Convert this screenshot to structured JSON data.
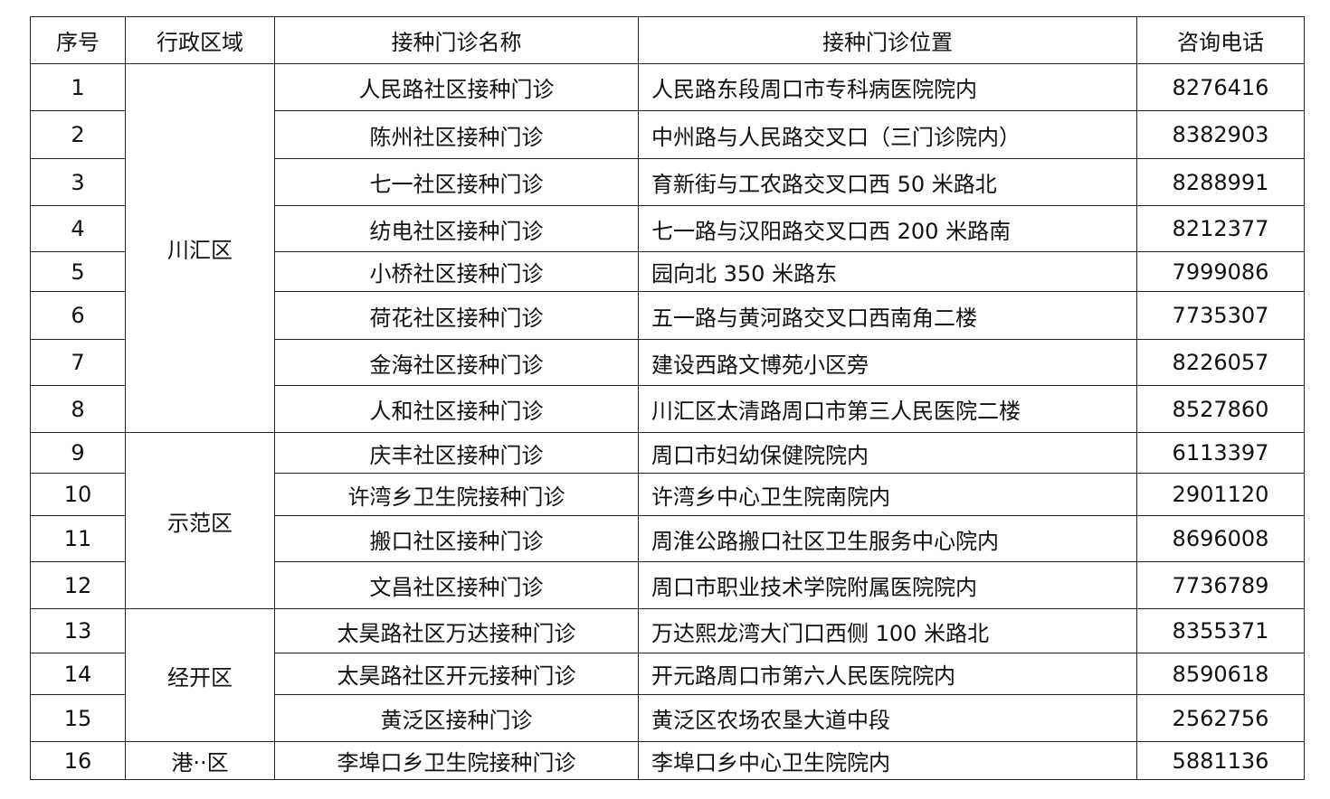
{
  "header": [
    "序号",
    "行政区域",
    "接种门诊名称",
    "接种门诊位置",
    "咨询电话"
  ],
  "districts": [
    {
      "name": "川汇区",
      "rows": 8
    },
    {
      "name": "示范区",
      "rows": 4
    },
    {
      "name": "经开区",
      "rows": 3
    },
    {
      "name": "港··区",
      "rows": 1
    }
  ],
  "rows": [
    {
      "no": "1",
      "clinic": "人民路社区接种门诊",
      "location": "人民路东段周口市专科病医院院内",
      "phone": "8276416"
    },
    {
      "no": "2",
      "clinic": "陈州社区接种门诊",
      "location": "中州路与人民路交叉口（三门诊院内）",
      "phone": "8382903"
    },
    {
      "no": "3",
      "clinic": "七一社区接种门诊",
      "location": "育新街与工农路交叉口西 50 米路北",
      "phone": "8288991"
    },
    {
      "no": "4",
      "clinic": "纺电社区接种门诊",
      "location": "七一路与汉阳路交叉口西 200 米路南",
      "phone": "8212377"
    },
    {
      "no": "5",
      "clinic": "小桥社区接种门诊",
      "location": "园向北 350 米路东",
      "phone": "7999086"
    },
    {
      "no": "6",
      "clinic": "荷花社区接种门诊",
      "location": "五一路与黄河路交叉口西南角二楼",
      "phone": "7735307"
    },
    {
      "no": "7",
      "clinic": "金海社区接种门诊",
      "location": "建设西路文博苑小区旁",
      "phone": "8226057"
    },
    {
      "no": "8",
      "clinic": "人和社区接种门诊",
      "location": "川汇区太清路周口市第三人民医院二楼",
      "phone": "8527860"
    },
    {
      "no": "9",
      "clinic": "庆丰社区接种门诊",
      "location": "周口市妇幼保健院院内",
      "phone": "6113397"
    },
    {
      "no": "10",
      "clinic": "许湾乡卫生院接种门诊",
      "location": "许湾乡中心卫生院南院内",
      "phone": "2901120"
    },
    {
      "no": "11",
      "clinic": "搬口社区接种门诊",
      "location": "周淮公路搬口社区卫生服务中心院内",
      "phone": "8696008"
    },
    {
      "no": "12",
      "clinic": "文昌社区接种门诊",
      "location": "周口市职业技术学院附属医院院内",
      "phone": "7736789"
    },
    {
      "no": "13",
      "clinic": "太昊路社区万达接种门诊",
      "location": "万达熙龙湾大门口西侧 100 米路北",
      "phone": "8355371"
    },
    {
      "no": "14",
      "clinic": "太昊路社区开元接种门诊",
      "location": "开元路周口市第六人民医院院内",
      "phone": "8590618"
    },
    {
      "no": "15",
      "clinic": "黄泛区接种门诊",
      "location": "黄泛区农场农垦大道中段",
      "phone": "2562756"
    },
    {
      "no": "16",
      "clinic": "李埠口乡卫生院接种门诊",
      "location": "李埠口乡中心卫生院院内",
      "phone": "5881136"
    }
  ]
}
